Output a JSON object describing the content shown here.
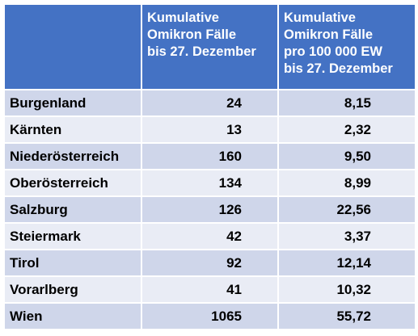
{
  "table": {
    "header": {
      "col1": "",
      "col2_lines": [
        "Kumulative",
        "Omikron Fälle",
        "bis 27. Dezember"
      ],
      "col3_lines": [
        "Kumulative",
        "Omikron Fälle",
        "pro 100 000 EW",
        "bis 27. Dezember"
      ]
    },
    "rows": [
      {
        "region": "Burgenland",
        "cases": "24",
        "per100k": "8,15"
      },
      {
        "region": "Kärnten",
        "cases": "13",
        "per100k": "2,32"
      },
      {
        "region": "Niederösterreich",
        "cases": "160",
        "per100k": "9,50"
      },
      {
        "region": "Oberösterreich",
        "cases": "134",
        "per100k": "8,99"
      },
      {
        "region": "Salzburg",
        "cases": "126",
        "per100k": "22,56"
      },
      {
        "region": "Steiermark",
        "cases": "42",
        "per100k": "3,37"
      },
      {
        "region": "Tirol",
        "cases": "92",
        "per100k": "12,14"
      },
      {
        "region": "Vorarlberg",
        "cases": "41",
        "per100k": "10,32"
      },
      {
        "region": "Wien",
        "cases": "1065",
        "per100k": "55,72"
      }
    ]
  },
  "colors": {
    "header_bg": "#4472c4",
    "row_light": "#e9ecf5",
    "row_dark": "#cfd6ea"
  }
}
